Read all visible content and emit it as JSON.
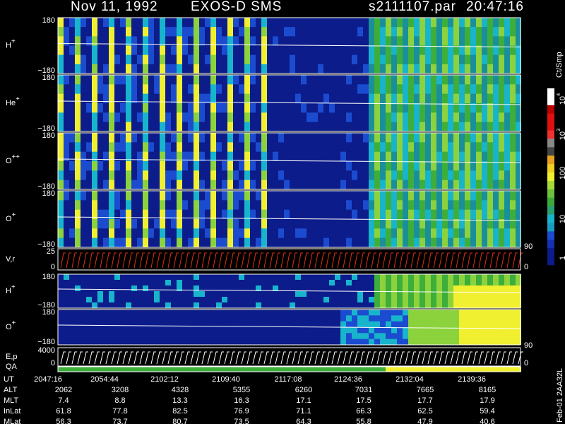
{
  "header": {
    "date": "Nov 11, 1992",
    "instrument": "EXOS-D SMS",
    "file": "s2111107.par",
    "time": "20:47:16"
  },
  "panels": [
    {
      "label": {
        "base": "H",
        "sup": "+"
      },
      "ticks": [
        "180",
        "−180"
      ]
    },
    {
      "label": {
        "base": "He",
        "sup": "+"
      },
      "ticks": [
        "180",
        "−180"
      ]
    },
    {
      "label": {
        "base": "O",
        "sup": "++"
      },
      "ticks": [
        "180",
        "−180"
      ]
    },
    {
      "label": {
        "base": "O",
        "sup": "+"
      },
      "ticks": [
        "180",
        "−180"
      ]
    },
    {
      "label": {
        "base": "V,r",
        "sup": ""
      },
      "ticks": [
        "25",
        "0"
      ],
      "right_ticks": [
        "90",
        "0"
      ]
    },
    {
      "label": {
        "base": "H",
        "sup": "+"
      },
      "ticks": [
        "180",
        "−180"
      ]
    },
    {
      "label": {
        "base": "O",
        "sup": "+"
      },
      "ticks": [
        "180",
        "−180"
      ]
    },
    {
      "label": {
        "base": "E,p",
        "sup": ""
      },
      "ticks": [
        "4000",
        "0"
      ],
      "right_ticks": [
        "90",
        "0"
      ]
    },
    {
      "label": {
        "base": "QA",
        "sup": ""
      },
      "ticks": []
    }
  ],
  "colorbar": {
    "unit": "Ct/Smp",
    "ticks": [
      {
        "base": "10",
        "sup": "4"
      },
      {
        "base": "10",
        "sup": "3"
      },
      {
        "base": "100",
        "sup": ""
      },
      {
        "base": "10",
        "sup": ""
      },
      {
        "base": "1",
        "sup": ""
      }
    ]
  },
  "table": {
    "rows": [
      {
        "name": "UT",
        "cells": [
          "2047:16",
          "2054:44",
          "2102:12",
          "2109:40",
          "2117:08",
          "2124:36",
          "2132:04",
          "2139:36"
        ]
      },
      {
        "name": "ALT",
        "cells": [
          "2062",
          "3208",
          "4328",
          "5355",
          "6260",
          "7031",
          "7665",
          "8165"
        ]
      },
      {
        "name": "MLT",
        "cells": [
          "7.4",
          "8.8",
          "13.3",
          "16.3",
          "17.1",
          "17.5",
          "17.7",
          "17.9"
        ]
      },
      {
        "name": "InLat",
        "cells": [
          "61.8",
          "77.8",
          "82.5",
          "76.9",
          "71.1",
          "66.3",
          "62.5",
          "59.4"
        ]
      },
      {
        "name": "MLat",
        "cells": [
          "56.3",
          "73.7",
          "80.7",
          "73.5",
          "64.3",
          "55.8",
          "47.9",
          "40.6"
        ]
      }
    ]
  },
  "footer": "Feb-01 2AA32L"
}
